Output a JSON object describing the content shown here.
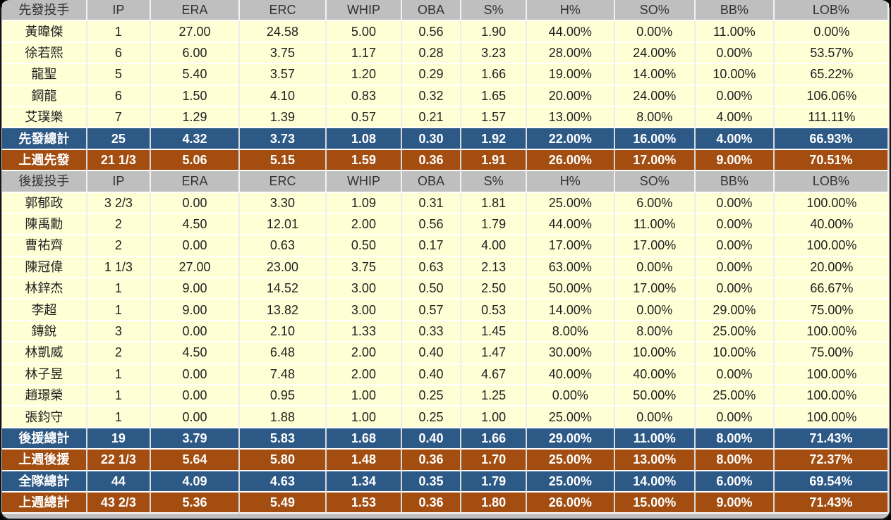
{
  "colors": {
    "header_bg": "#bfbfbf",
    "player_row_bg": "#ffffd6",
    "total_row_bg": "#2d5986",
    "last_week_row_bg": "#a34d10",
    "total_row_text": "#ffffff",
    "body_text": "#1f1f1f"
  },
  "chart_data": {
    "type": "table",
    "title": "",
    "stat_columns": [
      "IP",
      "ERA",
      "ERC",
      "WHIP",
      "OBA",
      "S%",
      "H%",
      "SO%",
      "BB%",
      "LOB%"
    ],
    "section_labels": [
      "先發投手",
      "後援投手"
    ],
    "rows": [
      {
        "type": "header",
        "cells": [
          "先發投手",
          "IP",
          "ERA",
          "ERC",
          "WHIP",
          "OBA",
          "S%",
          "H%",
          "SO%",
          "BB%",
          "LOB%"
        ]
      },
      {
        "type": "player",
        "cells": [
          "黃暐傑",
          "1",
          "27.00",
          "24.58",
          "5.00",
          "0.56",
          "1.90",
          "44.00%",
          "0.00%",
          "11.00%",
          "0.00%"
        ]
      },
      {
        "type": "player",
        "cells": [
          "徐若熙",
          "6",
          "6.00",
          "3.75",
          "1.17",
          "0.28",
          "3.23",
          "28.00%",
          "24.00%",
          "0.00%",
          "53.57%"
        ]
      },
      {
        "type": "player",
        "cells": [
          "龍聖",
          "5",
          "5.40",
          "3.57",
          "1.20",
          "0.29",
          "1.66",
          "19.00%",
          "14.00%",
          "10.00%",
          "65.22%"
        ]
      },
      {
        "type": "player",
        "cells": [
          "鋼龍",
          "6",
          "1.50",
          "4.10",
          "0.83",
          "0.32",
          "1.65",
          "20.00%",
          "24.00%",
          "0.00%",
          "106.06%"
        ]
      },
      {
        "type": "player",
        "cells": [
          "艾璞樂",
          "7",
          "1.29",
          "1.39",
          "0.57",
          "0.21",
          "1.57",
          "13.00%",
          "8.00%",
          "4.00%",
          "111.11%"
        ]
      },
      {
        "type": "total-blue",
        "cells": [
          "先發總計",
          "25",
          "4.32",
          "3.73",
          "1.08",
          "0.30",
          "1.92",
          "22.00%",
          "16.00%",
          "4.00%",
          "66.93%"
        ]
      },
      {
        "type": "total-brown",
        "cells": [
          "上週先發",
          "21 1/3",
          "5.06",
          "5.15",
          "1.59",
          "0.36",
          "1.91",
          "26.00%",
          "17.00%",
          "9.00%",
          "70.51%"
        ]
      },
      {
        "type": "header",
        "cells": [
          "後援投手",
          "IP",
          "ERA",
          "ERC",
          "WHIP",
          "OBA",
          "S%",
          "H%",
          "SO%",
          "BB%",
          "LOB%"
        ]
      },
      {
        "type": "player",
        "cells": [
          "郭郁政",
          "3 2/3",
          "0.00",
          "3.30",
          "1.09",
          "0.31",
          "1.81",
          "25.00%",
          "6.00%",
          "0.00%",
          "100.00%"
        ]
      },
      {
        "type": "player",
        "cells": [
          "陳禹勳",
          "2",
          "4.50",
          "12.01",
          "2.00",
          "0.56",
          "1.79",
          "44.00%",
          "11.00%",
          "0.00%",
          "40.00%"
        ]
      },
      {
        "type": "player",
        "cells": [
          "曹祐齊",
          "2",
          "0.00",
          "0.63",
          "0.50",
          "0.17",
          "4.00",
          "17.00%",
          "17.00%",
          "0.00%",
          "100.00%"
        ]
      },
      {
        "type": "player",
        "cells": [
          "陳冠偉",
          "1 1/3",
          "27.00",
          "23.00",
          "3.75",
          "0.63",
          "2.13",
          "63.00%",
          "0.00%",
          "0.00%",
          "20.00%"
        ]
      },
      {
        "type": "player",
        "cells": [
          "林鋅杰",
          "1",
          "9.00",
          "14.52",
          "3.00",
          "0.50",
          "2.50",
          "50.00%",
          "17.00%",
          "0.00%",
          "66.67%"
        ]
      },
      {
        "type": "player",
        "cells": [
          "李超",
          "1",
          "9.00",
          "13.82",
          "3.00",
          "0.57",
          "0.53",
          "14.00%",
          "0.00%",
          "29.00%",
          "75.00%"
        ]
      },
      {
        "type": "player",
        "cells": [
          "鏄銳",
          "3",
          "0.00",
          "2.10",
          "1.33",
          "0.33",
          "1.45",
          "8.00%",
          "8.00%",
          "25.00%",
          "100.00%"
        ]
      },
      {
        "type": "player",
        "cells": [
          "林凱威",
          "2",
          "4.50",
          "6.48",
          "2.00",
          "0.40",
          "1.47",
          "30.00%",
          "10.00%",
          "10.00%",
          "75.00%"
        ]
      },
      {
        "type": "player",
        "cells": [
          "林子昱",
          "1",
          "0.00",
          "7.48",
          "2.00",
          "0.40",
          "4.67",
          "40.00%",
          "40.00%",
          "0.00%",
          "100.00%"
        ]
      },
      {
        "type": "player",
        "cells": [
          "趙璟榮",
          "1",
          "0.00",
          "0.95",
          "1.00",
          "0.25",
          "1.25",
          "0.00%",
          "50.00%",
          "25.00%",
          "100.00%"
        ]
      },
      {
        "type": "player",
        "cells": [
          "張鈞守",
          "1",
          "0.00",
          "1.88",
          "1.00",
          "0.25",
          "1.00",
          "25.00%",
          "0.00%",
          "0.00%",
          "100.00%"
        ]
      },
      {
        "type": "total-blue",
        "cells": [
          "後援總計",
          "19",
          "3.79",
          "5.83",
          "1.68",
          "0.40",
          "1.66",
          "29.00%",
          "11.00%",
          "8.00%",
          "71.43%"
        ]
      },
      {
        "type": "total-brown",
        "cells": [
          "上週後援",
          "22 1/3",
          "5.64",
          "5.80",
          "1.48",
          "0.36",
          "1.70",
          "25.00%",
          "13.00%",
          "8.00%",
          "72.37%"
        ]
      },
      {
        "type": "total-blue",
        "cells": [
          "全隊總計",
          "44",
          "4.09",
          "4.63",
          "1.34",
          "0.35",
          "1.79",
          "25.00%",
          "14.00%",
          "6.00%",
          "69.54%"
        ]
      },
      {
        "type": "total-brown",
        "cells": [
          "上週總計",
          "43 2/3",
          "5.36",
          "5.49",
          "1.53",
          "0.36",
          "1.80",
          "26.00%",
          "15.00%",
          "9.00%",
          "71.43%"
        ]
      }
    ]
  }
}
